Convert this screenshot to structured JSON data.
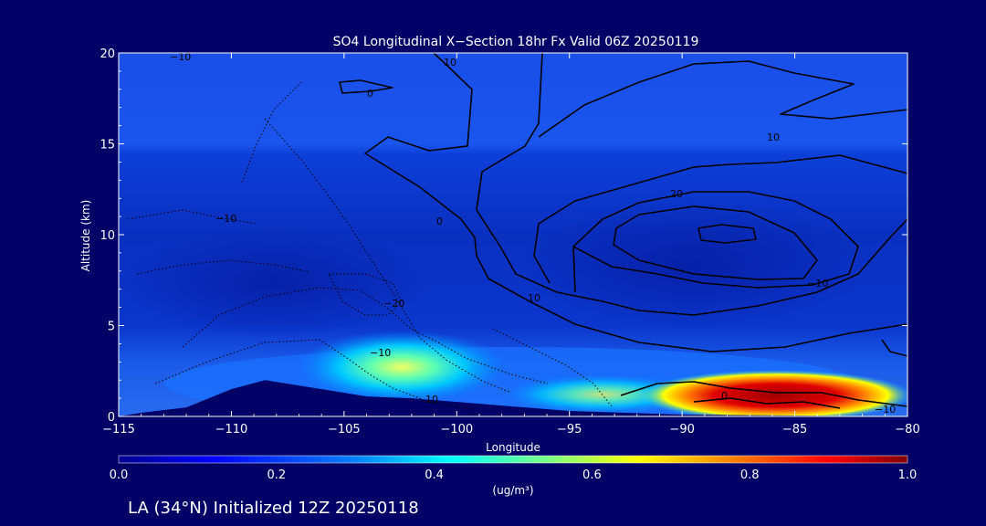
{
  "chart_data": {
    "type": "heatmap",
    "title": "SO4 Longitudinal X−Section 18hr  Fx Valid 06Z 20250119",
    "xlabel": "Longitude",
    "ylabel": "Altitude (km)",
    "xlim": [
      -115,
      -80
    ],
    "ylim": [
      0,
      20
    ],
    "xticks": [
      -115,
      -110,
      -105,
      -100,
      -95,
      -90,
      -85,
      -80
    ],
    "xtick_labels": [
      "−115",
      "−110",
      "−105",
      "−100",
      "−95",
      "−90",
      "−85",
      "−80"
    ],
    "yticks": [
      0,
      5,
      10,
      15,
      20
    ],
    "colorbar": {
      "min": 0.0,
      "max": 1.0,
      "ticks": [
        0.0,
        0.2,
        0.4,
        0.6,
        0.8,
        1.0
      ],
      "tick_labels": [
        "0.0",
        "0.2",
        "0.4",
        "0.6",
        "0.8",
        "1.0"
      ],
      "unit_label": "(ug/m³)",
      "colormap": [
        "#00008f",
        "#0000ff",
        "#0080ff",
        "#00ffff",
        "#80ff80",
        "#ffff00",
        "#ff8000",
        "#ff0000",
        "#800000"
      ]
    },
    "terrain_profile": [
      [
        -115,
        0.0
      ],
      [
        -114,
        0.2
      ],
      [
        -112,
        0.5
      ],
      [
        -110,
        1.5
      ],
      [
        -108.5,
        2.0
      ],
      [
        -108,
        1.9
      ],
      [
        -106,
        1.5
      ],
      [
        -104,
        1.1
      ],
      [
        -102,
        1.0
      ],
      [
        -100,
        0.8
      ],
      [
        -98,
        0.6
      ],
      [
        -95,
        0.3
      ],
      [
        -90,
        0.1
      ],
      [
        -85,
        0.05
      ],
      [
        -80,
        0.0
      ]
    ],
    "contour_labels": [
      "−10",
      "10",
      "0",
      "10",
      "20",
      "10",
      "−10",
      "−20",
      "0",
      "−10",
      "10",
      "−10",
      "0",
      "−10",
      "0"
    ]
  },
  "footer": {
    "caption": "LA (34°N) Initialized 12Z 20250118"
  }
}
